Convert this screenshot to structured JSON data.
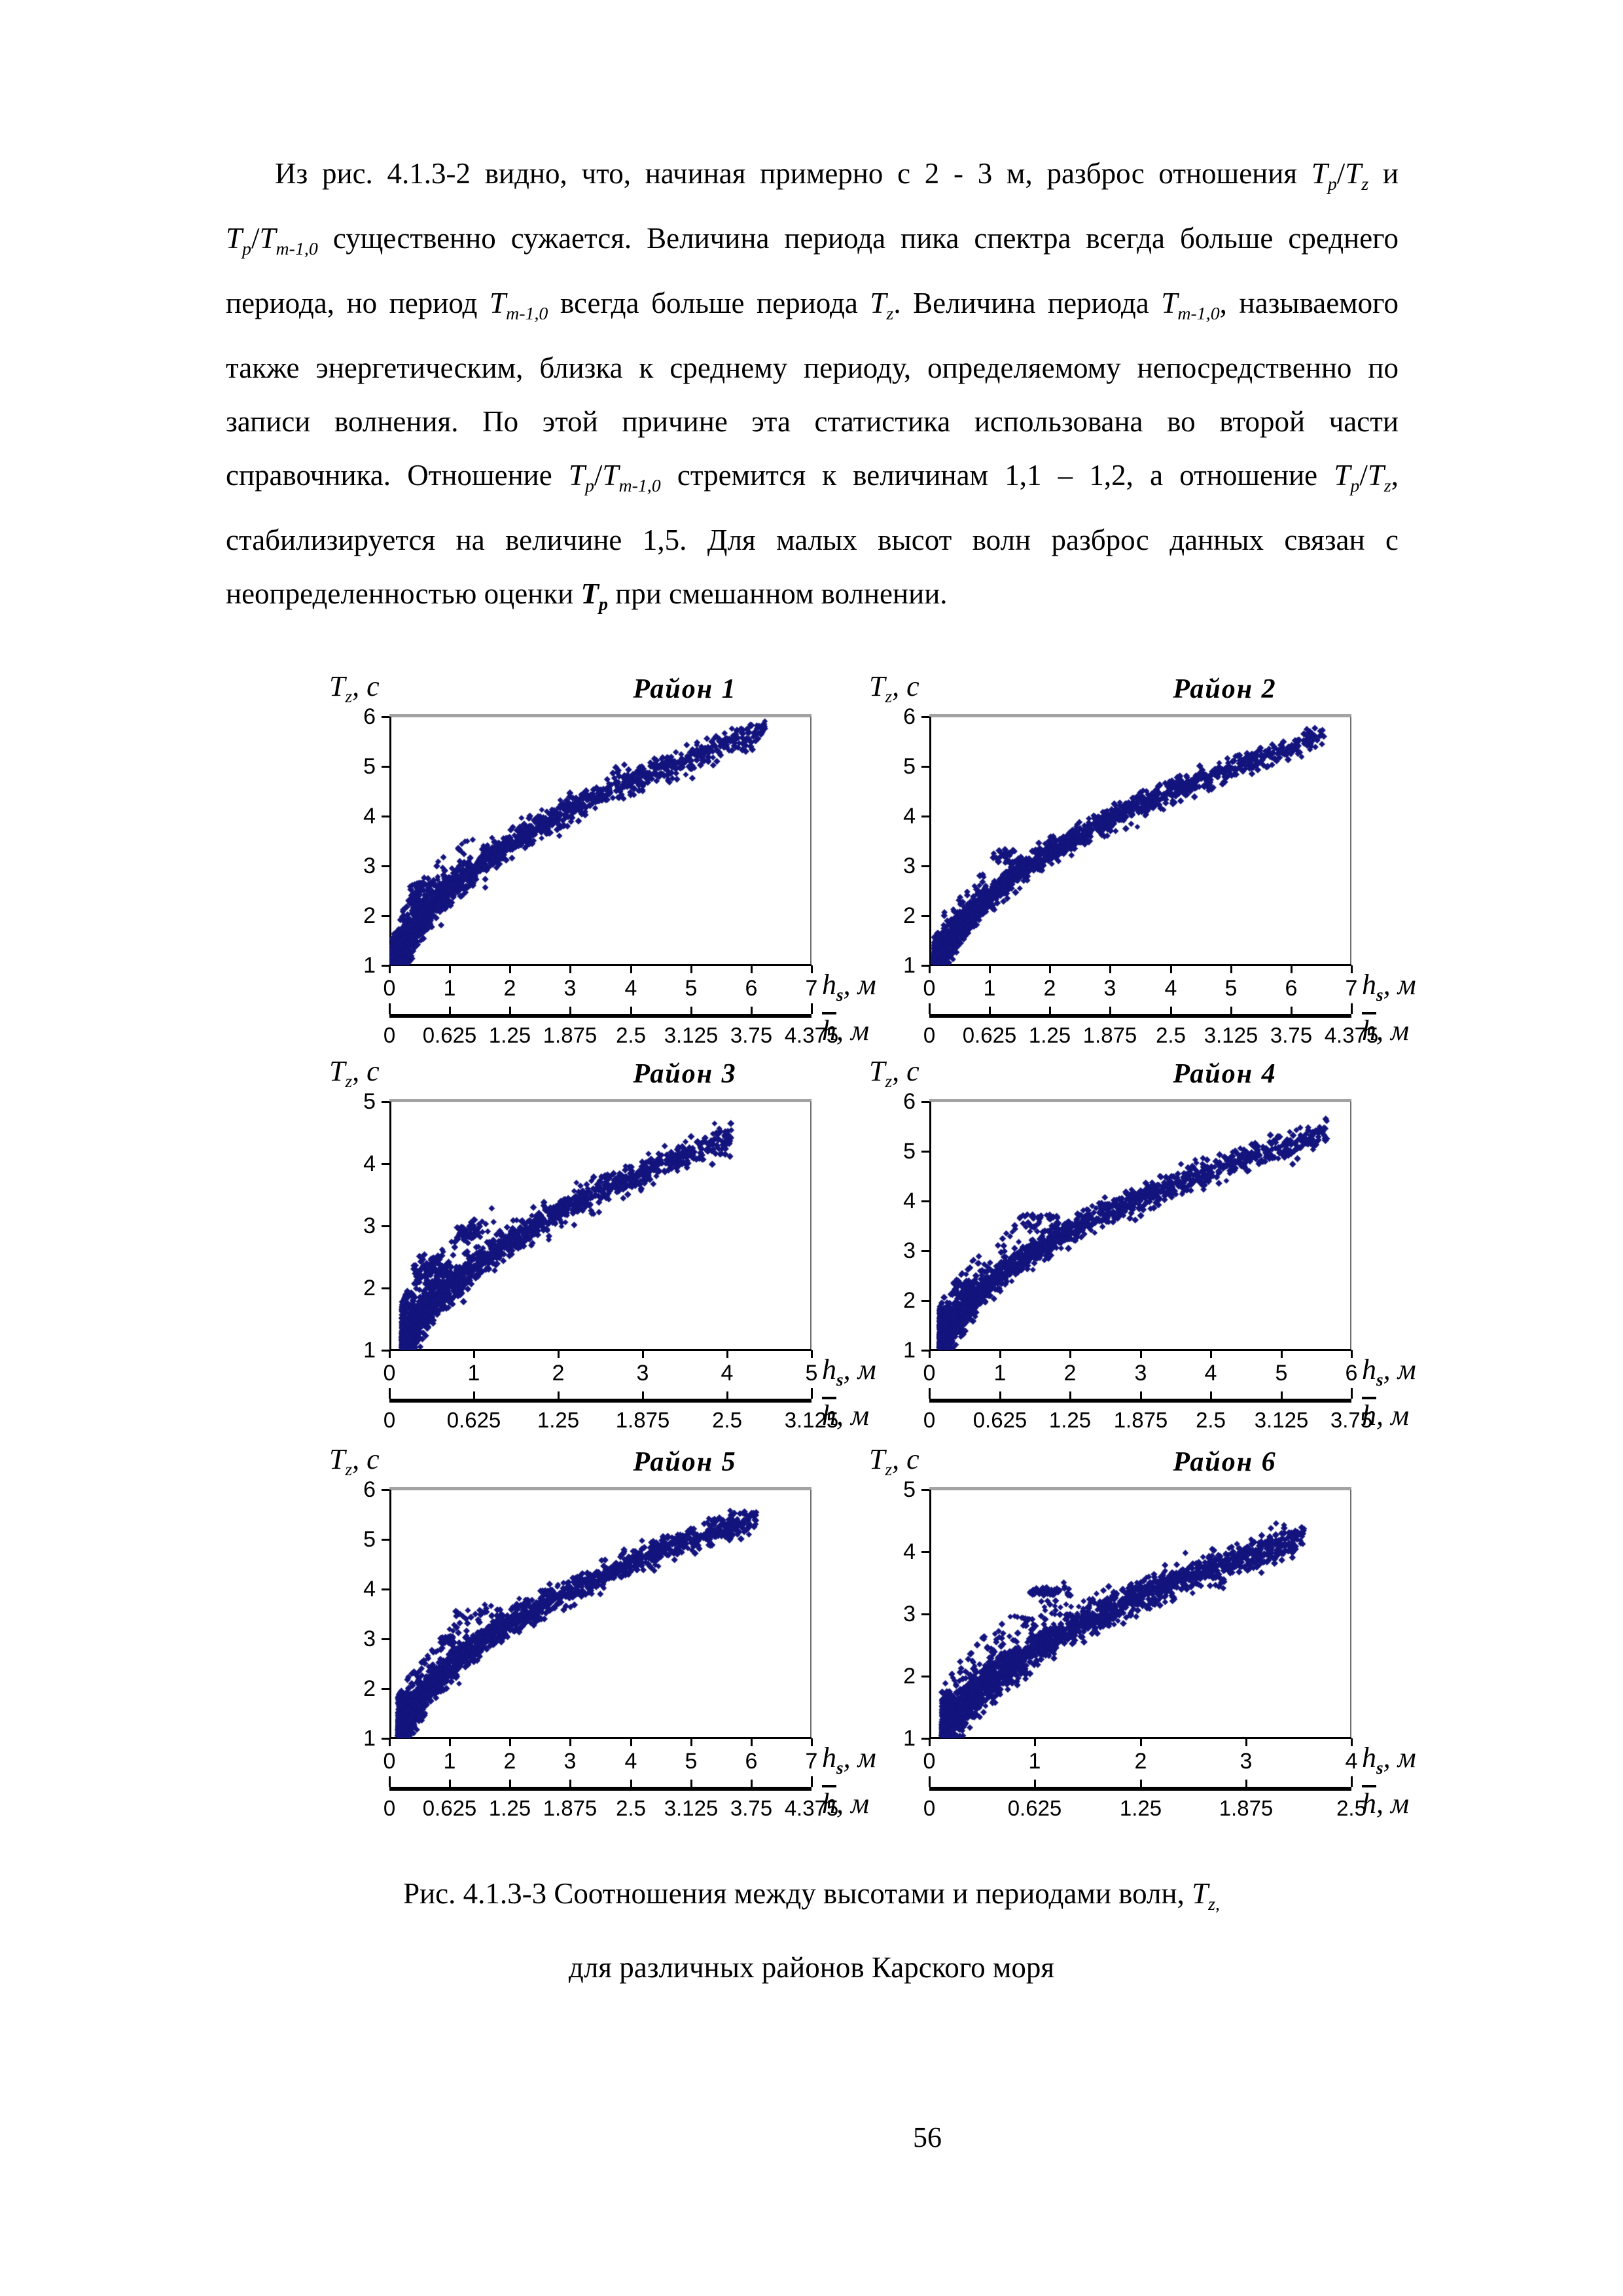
{
  "page": {
    "number": "56"
  },
  "paragraph": {
    "lines": [
      "Из  рис. 4.1.3-2 видно, что, начиная примерно с 2 - 3 м, разброс отношения [i]T[sub]p[/sub][/i]/[i]T[sub]z[/sub][/i] и",
      "[i]T[sub]p[/sub][/i]/[i]T[sub]m-1,0[/sub][/i] существенно сужается. Величина периода пика спектра всегда больше среднего",
      "периода, но период [i]T[sub]m-1,0[/sub][/i] всегда больше периода [i]T[sub]z[/sub][/i]. Величина периода [i]T[sub]m-1,0[/sub][/i], называемого",
      "также энергетическим, близка к среднему периоду, определяемому непосредственно по",
      "записи волнения. По этой причине эта статистика использована во второй части",
      "справочника. Отношение [i]T[sub]p[/sub][/i]/[i]T[sub]m-1,0[/sub][/i] стремится к величинам 1,1 – 1,2, а отношение [i]T[sub]p[/sub][/i]/[i]T[sub]z[/sub][/i],",
      "стабилизируется на величине 1,5. Для малых высот волн разброс данных связан с",
      "неопределенностью оценки [b][i]T[sub]p[/sub][/i][/b] при смешанном волнении."
    ]
  },
  "caption": {
    "line1": "Рис. 4.1.3-3 Соотношения между высотами и периодами волн, [i]T[sub]z,[/sub][/i]",
    "line2": "для различных районов Карского моря"
  },
  "chart_data": [
    {
      "type": "scatter",
      "title": "Район 1",
      "ylabel": "[i]T[sub]z[/sub][/i], с",
      "xlabel": "[i]h[sub][b]s[/b][/sub][/i], м",
      "xlabel2": "[i][ov]h[/ov][/i], м",
      "ylim": [
        1,
        6
      ],
      "y_ticks": [
        1,
        2,
        3,
        4,
        5,
        6
      ],
      "xlim": [
        0,
        7
      ],
      "x_ticks": [
        0,
        1,
        2,
        3,
        4,
        5,
        6,
        7
      ],
      "x2_ticks": [
        "0",
        "0.625",
        "1.25",
        "1.875",
        "2.5",
        "3.125",
        "3.75",
        "4.375"
      ],
      "point_color": "#14147e",
      "trend_samples": [
        [
          0.2,
          1.3
        ],
        [
          1,
          2.55
        ],
        [
          2,
          3.45
        ],
        [
          3,
          4.1
        ],
        [
          4,
          4.7
        ],
        [
          5,
          5.2
        ],
        [
          6.2,
          5.7
        ]
      ],
      "cloud": {
        "a": 2.55,
        "b": 0.44,
        "n": 2200,
        "x_min": 0.05,
        "x_max": 6.25,
        "x_power": 3.0,
        "sigma": 0.14,
        "ridge_prob": 0.06,
        "seed": 11
      },
      "clusters": [
        {
          "cx": 0.62,
          "cy": 2.45,
          "rx": 0.3,
          "ry": 0.22,
          "n": 70
        }
      ]
    },
    {
      "type": "scatter",
      "title": "Район 2",
      "ylabel": "[i]T[sub]z[/sub][/i], с",
      "xlabel": "[i]h[sub][b]s[/b][/sub][/i], м",
      "xlabel2": "[i][ov]h[/ov][/i], м",
      "ylim": [
        1,
        6
      ],
      "y_ticks": [
        1,
        2,
        3,
        4,
        5,
        6
      ],
      "xlim": [
        0,
        7
      ],
      "x_ticks": [
        0,
        1,
        2,
        3,
        4,
        5,
        6,
        7
      ],
      "x2_ticks": [
        "0",
        "0.625",
        "1.25",
        "1.875",
        "2.5",
        "3.125",
        "3.75",
        "4.375"
      ],
      "point_color": "#14147e",
      "trend_samples": [
        [
          0.15,
          1.2
        ],
        [
          1,
          2.4
        ],
        [
          2,
          3.3
        ],
        [
          3,
          4.0
        ],
        [
          4,
          4.6
        ],
        [
          5,
          5.0
        ],
        [
          6.5,
          5.8
        ]
      ],
      "cloud": {
        "a": 2.4,
        "b": 0.45,
        "n": 2300,
        "x_min": 0.08,
        "x_max": 6.55,
        "x_power": 3.2,
        "sigma": 0.12,
        "ridge_prob": 0.02,
        "seed": 22
      },
      "clusters": [
        {
          "cx": 1.25,
          "cy": 3.2,
          "rx": 0.2,
          "ry": 0.14,
          "n": 28
        }
      ]
    },
    {
      "type": "scatter",
      "title": "Район 3",
      "ylabel": "[i]T[sub]z[/sub][/i], с",
      "xlabel": "[i]h[sub][b]s[/b][/sub][/i], м",
      "xlabel2": "[i][ov]h[/ov][/i], м",
      "ylim": [
        1,
        5
      ],
      "y_ticks": [
        1,
        2,
        3,
        4,
        5
      ],
      "xlim": [
        0,
        5
      ],
      "x_ticks": [
        0,
        1,
        2,
        3,
        4,
        5
      ],
      "x2_ticks": [
        "0",
        "0.625",
        "1.25",
        "1.875",
        "2.5",
        "3.125"
      ],
      "point_color": "#14147e",
      "trend_samples": [
        [
          0.2,
          1.35
        ],
        [
          1,
          2.35
        ],
        [
          2,
          3.2
        ],
        [
          3,
          3.9
        ],
        [
          4,
          4.55
        ]
      ],
      "cloud": {
        "a": 2.35,
        "b": 0.45,
        "n": 2100,
        "x_min": 0.15,
        "x_max": 4.05,
        "x_power": 2.8,
        "sigma": 0.11,
        "ridge_prob": 0.08,
        "seed": 33
      },
      "clusters": [
        {
          "cx": 0.5,
          "cy": 2.3,
          "rx": 0.22,
          "ry": 0.24,
          "n": 80
        },
        {
          "cx": 0.95,
          "cy": 2.9,
          "rx": 0.16,
          "ry": 0.1,
          "n": 45
        }
      ]
    },
    {
      "type": "scatter",
      "title": "Район 4",
      "ylabel": "[i]T[sub]z[/sub][/i], с",
      "xlabel": "[i]h[sub][b]s[/b][/sub][/i], м",
      "xlabel2": "[i][ov]h[/ov][/i], м",
      "ylim": [
        1,
        6
      ],
      "y_ticks": [
        1,
        2,
        3,
        4,
        5,
        6
      ],
      "xlim": [
        0,
        6
      ],
      "x_ticks": [
        0,
        1,
        2,
        3,
        4,
        5,
        6
      ],
      "x2_ticks": [
        "0",
        "0.625",
        "1.25",
        "1.875",
        "2.5",
        "3.125",
        "3.75"
      ],
      "point_color": "#14147e",
      "trend_samples": [
        [
          0.2,
          1.3
        ],
        [
          1,
          2.5
        ],
        [
          2,
          3.4
        ],
        [
          3,
          4.1
        ],
        [
          4,
          4.6
        ],
        [
          5,
          5.0
        ],
        [
          5.6,
          5.4
        ]
      ],
      "cloud": {
        "a": 2.5,
        "b": 0.44,
        "n": 2200,
        "x_min": 0.15,
        "x_max": 5.65,
        "x_power": 3.0,
        "sigma": 0.13,
        "ridge_prob": 0.07,
        "seed": 44
      },
      "clusters": [
        {
          "cx": 1.55,
          "cy": 3.55,
          "rx": 0.28,
          "ry": 0.18,
          "n": 45
        },
        {
          "cx": 0.5,
          "cy": 2.25,
          "rx": 0.18,
          "ry": 0.15,
          "n": 40
        }
      ]
    },
    {
      "type": "scatter",
      "title": "Район 5",
      "ylabel": "[i]T[sub]z[/sub][/i], с",
      "xlabel": "[i]h[sub][b]s[/b][/sub][/i], м",
      "xlabel2": "[i][ov]h[/ov][/i], м",
      "ylim": [
        1,
        6
      ],
      "y_ticks": [
        1,
        2,
        3,
        4,
        5,
        6
      ],
      "xlim": [
        0,
        7
      ],
      "x_ticks": [
        0,
        1,
        2,
        3,
        4,
        5,
        6,
        7
      ],
      "x2_ticks": [
        "0",
        "0.625",
        "1.25",
        "1.875",
        "2.5",
        "3.125",
        "3.75",
        "4.375"
      ],
      "point_color": "#14147e",
      "trend_samples": [
        [
          0.2,
          1.4
        ],
        [
          1,
          2.4
        ],
        [
          2,
          3.35
        ],
        [
          3,
          4.1
        ],
        [
          4,
          4.6
        ],
        [
          5,
          5.1
        ],
        [
          6.1,
          5.75
        ]
      ],
      "cloud": {
        "a": 2.42,
        "b": 0.45,
        "n": 2300,
        "x_min": 0.15,
        "x_max": 6.1,
        "x_power": 2.6,
        "sigma": 0.13,
        "ridge_prob": 0.06,
        "seed": 55
      },
      "clusters": [
        {
          "cx": 1.5,
          "cy": 3.5,
          "rx": 0.4,
          "ry": 0.22,
          "n": 30
        },
        {
          "cx": 0.95,
          "cy": 2.95,
          "rx": 0.12,
          "ry": 0.1,
          "n": 25
        }
      ]
    },
    {
      "type": "scatter",
      "title": "Район 6",
      "ylabel": "[i]T[sub]z[/sub][/i], с",
      "xlabel": "[i]h[sub][b]s[/b][/sub][/i], м",
      "xlabel2": "[i][ov]h[/ov][/i], м",
      "ylim": [
        1,
        5
      ],
      "y_ticks": [
        1,
        2,
        3,
        4,
        5
      ],
      "xlim": [
        0,
        4
      ],
      "x_ticks": [
        0,
        1,
        2,
        3,
        4
      ],
      "x2_ticks": [
        "0",
        "0.625",
        "1.25",
        "1.875",
        "2.5"
      ],
      "point_color": "#14147e",
      "trend_samples": [
        [
          0.15,
          1.3
        ],
        [
          1,
          2.45
        ],
        [
          2,
          3.3
        ],
        [
          3,
          3.95
        ],
        [
          3.5,
          4.4
        ]
      ],
      "cloud": {
        "a": 2.45,
        "b": 0.43,
        "n": 2300,
        "x_min": 0.12,
        "x_max": 3.55,
        "x_power": 2.0,
        "sigma": 0.12,
        "ridge_prob": 0.05,
        "seed": 66
      },
      "clusters": [
        {
          "cx": 1.15,
          "cy": 3.37,
          "rx": 0.2,
          "ry": 0.07,
          "n": 40
        },
        {
          "cx": 0.93,
          "cy": 2.88,
          "rx": 0.06,
          "ry": 0.07,
          "n": 14
        }
      ]
    }
  ]
}
